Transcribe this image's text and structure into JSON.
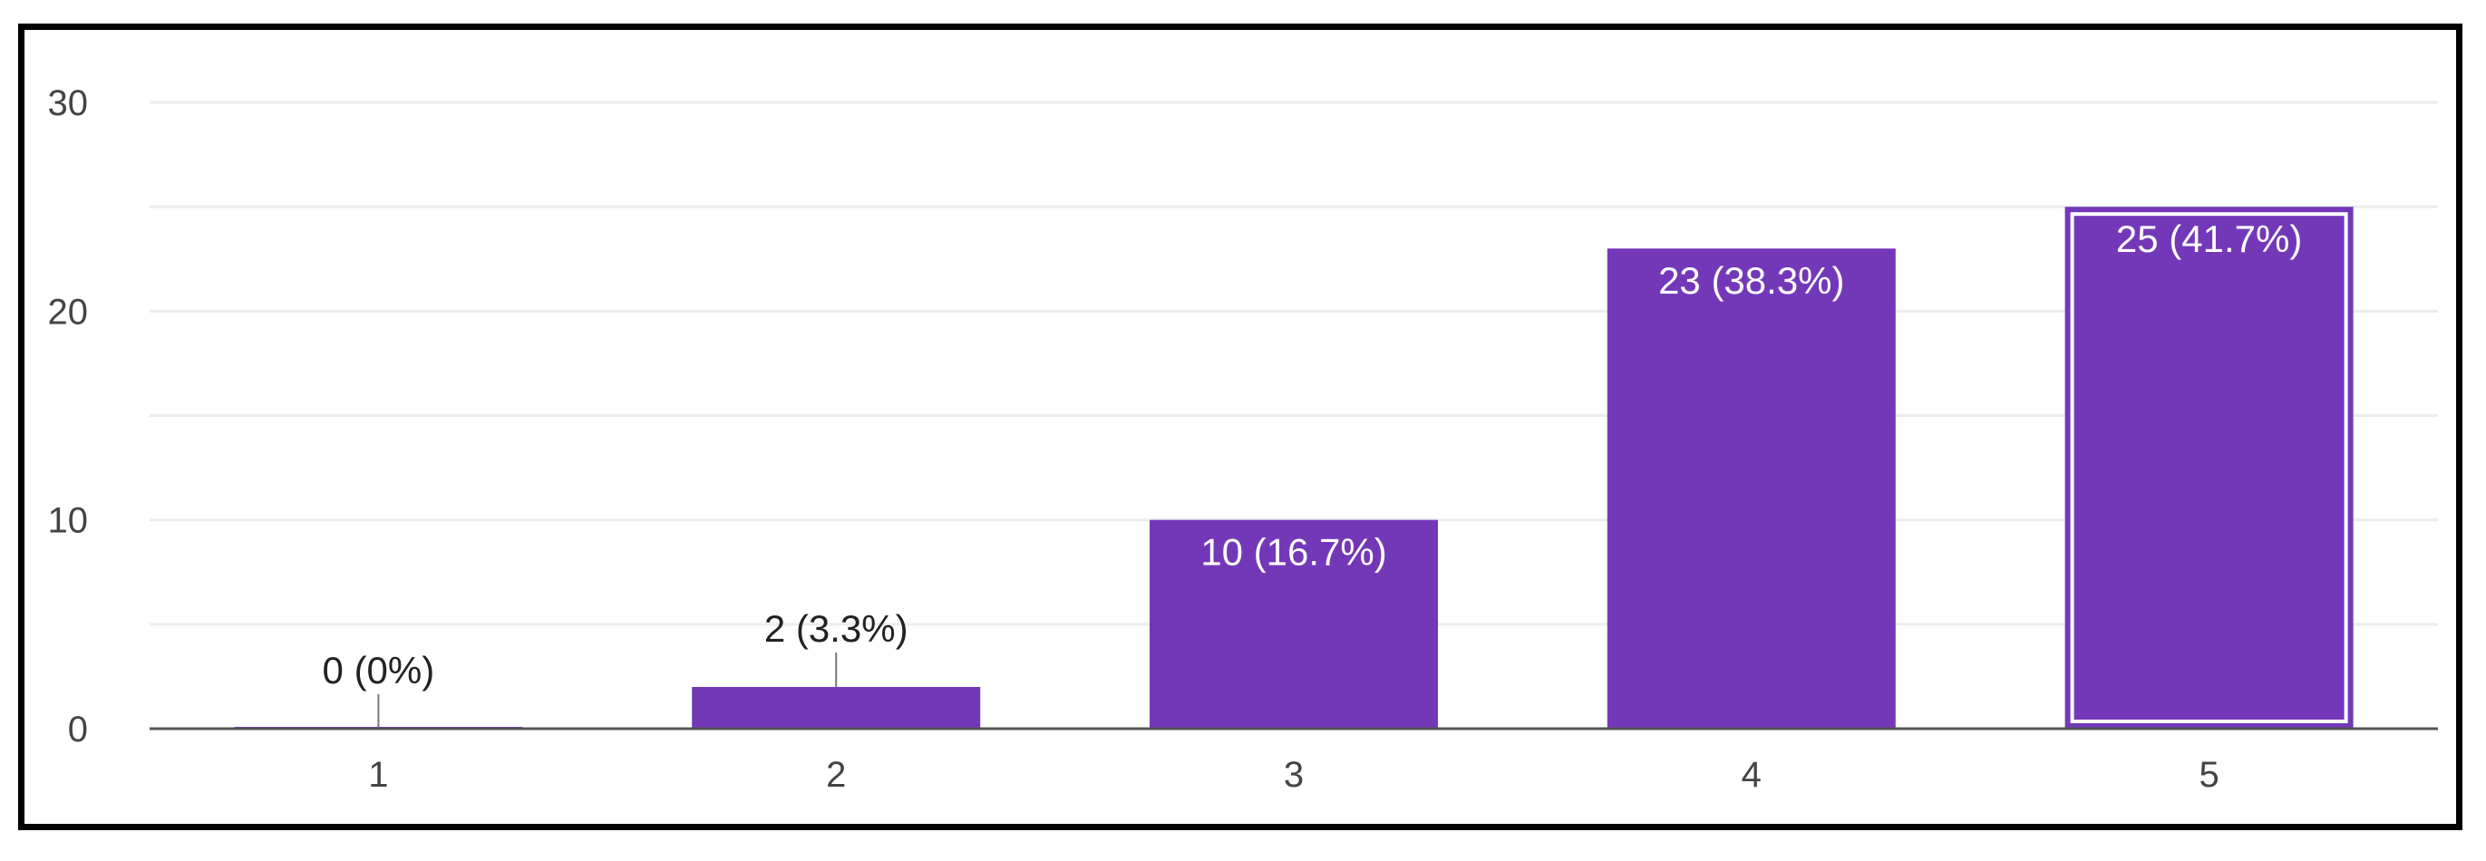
{
  "chart_data": {
    "type": "bar",
    "categories": [
      "1",
      "2",
      "3",
      "4",
      "5"
    ],
    "values": [
      0,
      2,
      10,
      23,
      25
    ],
    "data_labels": [
      "0 (0%)",
      "2 (3.3%)",
      "10 (16.7%)",
      "23 (38.3%)",
      "25 (41.7%)"
    ],
    "y_ticks": [
      "0",
      "10",
      "20",
      "30"
    ],
    "ylim": [
      0,
      30
    ],
    "grid": true,
    "highlighted_category": "5",
    "title": "",
    "xlabel": "",
    "ylabel": ""
  },
  "colors": {
    "bar": "#7338b8",
    "grid": "#ececec",
    "axis": "#555555",
    "frame": "#000000"
  }
}
